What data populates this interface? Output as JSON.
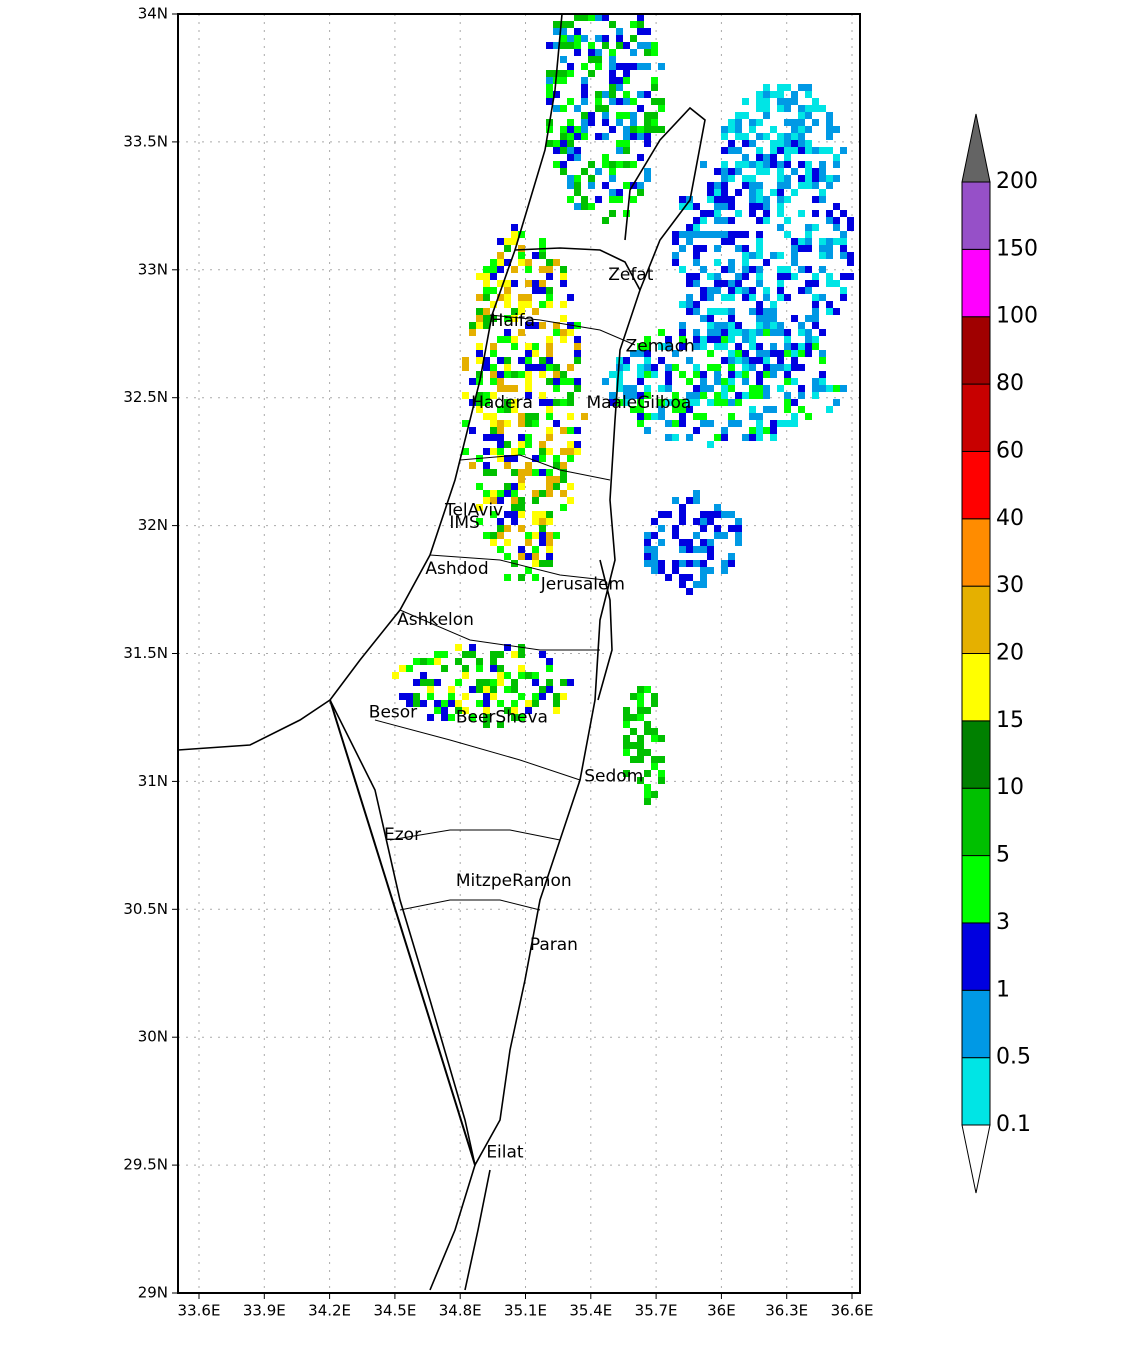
{
  "map": {
    "lat_ticks": [
      {
        "value": 34,
        "label": "34N"
      },
      {
        "value": 33.5,
        "label": "33.5N"
      },
      {
        "value": 33,
        "label": "33N"
      },
      {
        "value": 32.5,
        "label": "32.5N"
      },
      {
        "value": 32,
        "label": "32N"
      },
      {
        "value": 31.5,
        "label": "31.5N"
      },
      {
        "value": 31,
        "label": "31N"
      },
      {
        "value": 30.5,
        "label": "30.5N"
      },
      {
        "value": 30,
        "label": "30N"
      },
      {
        "value": 29.5,
        "label": "29.5N"
      },
      {
        "value": 29,
        "label": "29N"
      }
    ],
    "lon_ticks": [
      {
        "value": 33.6,
        "label": "33.6E"
      },
      {
        "value": 33.9,
        "label": "33.9E"
      },
      {
        "value": 34.2,
        "label": "34.2E"
      },
      {
        "value": 34.5,
        "label": "34.5E"
      },
      {
        "value": 34.8,
        "label": "34.8E"
      },
      {
        "value": 35.1,
        "label": "35.1E"
      },
      {
        "value": 35.4,
        "label": "35.4E"
      },
      {
        "value": 35.7,
        "label": "35.7E"
      },
      {
        "value": 36,
        "label": "36E"
      },
      {
        "value": 36.3,
        "label": "36.3E"
      },
      {
        "value": 36.6,
        "label": "36.6E"
      }
    ],
    "cities": [
      {
        "name": "Zefat",
        "lon": 35.48,
        "lat": 32.98
      },
      {
        "name": "Haifa",
        "lon": 34.94,
        "lat": 32.8
      },
      {
        "name": "Zemach",
        "lon": 35.56,
        "lat": 32.7
      },
      {
        "name": "Hadera",
        "lon": 34.85,
        "lat": 32.48
      },
      {
        "name": "MaaleGilboa",
        "lon": 35.38,
        "lat": 32.48
      },
      {
        "name": "TelAviv",
        "lon": 34.73,
        "lat": 32.06
      },
      {
        "name": "IMS",
        "lon": 34.75,
        "lat": 32.01
      },
      {
        "name": "Ashdod",
        "lon": 34.64,
        "lat": 31.83
      },
      {
        "name": "Jerusalem",
        "lon": 35.17,
        "lat": 31.77
      },
      {
        "name": "Ashkelon",
        "lon": 34.51,
        "lat": 31.63
      },
      {
        "name": "Besor",
        "lon": 34.38,
        "lat": 31.27
      },
      {
        "name": "BeerSheva",
        "lon": 34.78,
        "lat": 31.25
      },
      {
        "name": "Sedom",
        "lon": 35.37,
        "lat": 31.02
      },
      {
        "name": "Ezor",
        "lon": 34.45,
        "lat": 30.79
      },
      {
        "name": "MitzpeRamon",
        "lon": 34.78,
        "lat": 30.61
      },
      {
        "name": "Paran",
        "lon": 35.12,
        "lat": 30.36
      },
      {
        "name": "Eilat",
        "lon": 34.92,
        "lat": 29.55
      }
    ],
    "colorbar": {
      "levels": [
        0.1,
        0.5,
        1,
        3,
        5,
        10,
        15,
        20,
        30,
        40,
        60,
        80,
        100,
        150,
        200
      ],
      "colors": [
        "#ffffff",
        "#00e5e5",
        "#0099e5",
        "#0000e0",
        "#00ff00",
        "#00c000",
        "#008000",
        "#ffff00",
        "#e5b000",
        "#ff8c00",
        "#ff0000",
        "#c80000",
        "#a00000",
        "#ff00ff",
        "#9650c8",
        "#646464"
      ]
    }
  }
}
